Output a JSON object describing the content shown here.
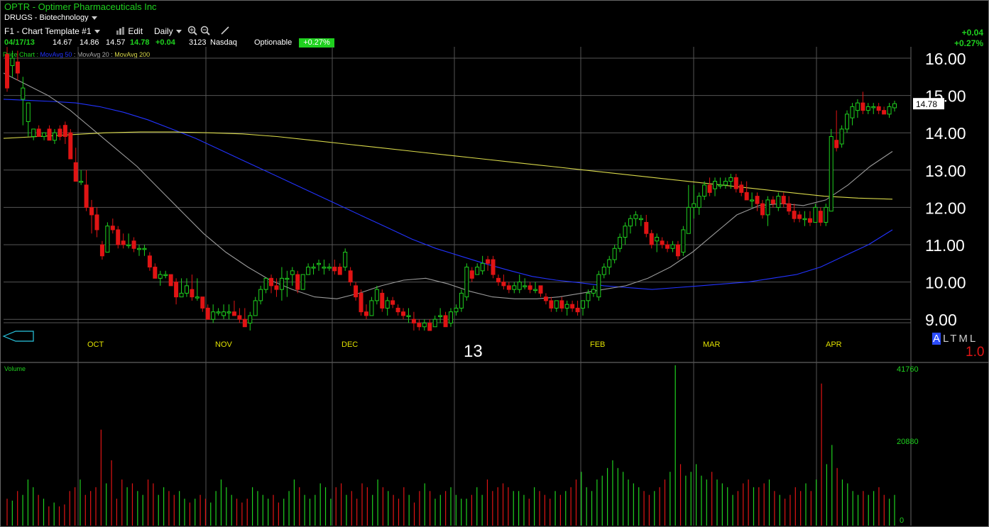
{
  "header": {
    "title": "OPTR - Optimer Pharmaceuticals Inc",
    "sector": "DRUGS - Biotechnology"
  },
  "toolbar": {
    "template": "F1 - Chart Template #1",
    "edit": "Edit",
    "period": "Daily"
  },
  "quote": {
    "date": "04/17/13",
    "open": "14.67",
    "high": "14.86",
    "low": "14.57",
    "last": "14.78",
    "change": "+0.04",
    "volume": "3123",
    "exchange": "Nasdaq",
    "optionable": "Optionable",
    "pct_badge": "+0.27%"
  },
  "change_display": {
    "net": "+0.04",
    "pct": "+0.27%"
  },
  "legend": {
    "price_chart": "Price Chart",
    "ma50": "MovAvg 50",
    "ma20": "MovAvg 20",
    "ma200": "MovAvg 200",
    "sep": " : ",
    "dot": " : "
  },
  "colors": {
    "up": "#1fd11f",
    "down": "#e01414",
    "ma50": "#2233ff",
    "ma20": "#9a9a9a",
    "ma200": "#d8d84a",
    "grid": "#555555",
    "axis_label": "#ffffff",
    "month_label": "#e0e000"
  },
  "modes": {
    "items": [
      "A",
      "L",
      "T",
      "M",
      "L"
    ],
    "selected": "A"
  },
  "scale_value": "1.0",
  "volume_label": "Volume",
  "chart_data": {
    "type": "candlestick",
    "price_axis": {
      "ticks": [
        "16.00",
        "15.00",
        "14.00",
        "13.00",
        "12.00",
        "11.00",
        "10.00",
        "9.00"
      ],
      "ylim": [
        8.6,
        16.5
      ]
    },
    "last_price_tag": "14.78",
    "x_labels": [
      "OCT",
      "NOV",
      "DEC",
      "13",
      "FEB",
      "MAR",
      "APR"
    ],
    "candles": [
      [
        16.1,
        16.3,
        15.1,
        15.2
      ],
      [
        15.8,
        16.2,
        15.5,
        16
      ],
      [
        15.9,
        16.2,
        15.4,
        15.6
      ],
      [
        14.9,
        15.5,
        14.2,
        15.2
      ],
      [
        14.3,
        14.8,
        13.9,
        14.8
      ],
      [
        13.9,
        14.1,
        13.8,
        14.1
      ],
      [
        14.1,
        14.2,
        13.9,
        13.9
      ],
      [
        13.9,
        14,
        13.8,
        14
      ],
      [
        14.1,
        14.2,
        13.8,
        13.8
      ],
      [
        13.8,
        14.1,
        13.7,
        14
      ],
      [
        14.1,
        14.2,
        13.8,
        13.9
      ],
      [
        14.2,
        14.3,
        13.7,
        13.9
      ],
      [
        14,
        14.1,
        13.3,
        13.3
      ],
      [
        13.2,
        13.6,
        12.7,
        12.7
      ],
      [
        12.7,
        13,
        12.6,
        12.7
      ],
      [
        12.6,
        13,
        11.9,
        12
      ],
      [
        12,
        12.2,
        11.3,
        11.8
      ],
      [
        11.8,
        12,
        11.2,
        11.4
      ],
      [
        11,
        11.1,
        10.6,
        10.7
      ],
      [
        10.8,
        11.6,
        10.8,
        11.5
      ],
      [
        11.5,
        11.7,
        11.3,
        11.4
      ],
      [
        11.4,
        11.5,
        10.9,
        11
      ],
      [
        11.1,
        11.3,
        10.9,
        11
      ],
      [
        11,
        11.3,
        10.9,
        11
      ],
      [
        11.1,
        11.2,
        10.8,
        10.9
      ],
      [
        10.9,
        11,
        10.7,
        10.9
      ],
      [
        10.9,
        11,
        10.7,
        10.9
      ],
      [
        10.7,
        10.8,
        10.3,
        10.4
      ],
      [
        10.4,
        10.5,
        10.1,
        10.1
      ],
      [
        10.1,
        10.3,
        9.9,
        10.2
      ],
      [
        10.2,
        10.3,
        10.1,
        10.2
      ],
      [
        10.2,
        10.2,
        9.9,
        9.9
      ],
      [
        10,
        10.1,
        9.4,
        9.6
      ],
      [
        9.6,
        10.1,
        9.6,
        9.7
      ],
      [
        9.7,
        10.1,
        9.6,
        9.9
      ],
      [
        9.8,
        10.2,
        9.5,
        9.6
      ],
      [
        9.6,
        10.1,
        9.5,
        9.6
      ],
      [
        9.6,
        9.6,
        9.2,
        9.3
      ],
      [
        9.3,
        9.4,
        9,
        9
      ],
      [
        9,
        9.4,
        8.9,
        9.2
      ],
      [
        9.2,
        9.3,
        9.1,
        9.2
      ],
      [
        9.1,
        9.4,
        9,
        9.2
      ],
      [
        9.2,
        9.4,
        9,
        9.2
      ],
      [
        9.2,
        9.5,
        9.1,
        9.1
      ],
      [
        9.1,
        9.3,
        8.9,
        9
      ],
      [
        9,
        9.3,
        8.8,
        8.8
      ],
      [
        8.9,
        9.2,
        8.7,
        9.1
      ],
      [
        9.1,
        9.6,
        9.1,
        9.5
      ],
      [
        9.5,
        9.9,
        9.4,
        9.8
      ],
      [
        9.8,
        10.1,
        9.7,
        10.1
      ],
      [
        10.1,
        10.2,
        9.7,
        9.9
      ],
      [
        9.9,
        10.1,
        9.6,
        9.8
      ],
      [
        9.8,
        10.4,
        9.5,
        10.1
      ],
      [
        10.1,
        10.3,
        9.6,
        10.1
      ],
      [
        10.2,
        10.4,
        9.9,
        10.3
      ],
      [
        10.2,
        10.3,
        9.7,
        9.8
      ],
      [
        9.8,
        10.2,
        9.8,
        10.2
      ],
      [
        10.2,
        10.5,
        10.2,
        10.4
      ],
      [
        10.4,
        10.5,
        10.2,
        10.4
      ],
      [
        10.5,
        10.6,
        10.3,
        10.5
      ],
      [
        10.4,
        10.6,
        10.2,
        10.4
      ],
      [
        10.4,
        10.5,
        10.3,
        10.4
      ],
      [
        10.4,
        10.6,
        10.2,
        10.3
      ],
      [
        10.4,
        10.5,
        10.2,
        10.2
      ],
      [
        10.4,
        10.9,
        10.3,
        10.8
      ],
      [
        10.3,
        10.4,
        9.9,
        10
      ],
      [
        9.9,
        10,
        9.5,
        9.6
      ],
      [
        9.7,
        9.8,
        9.1,
        9.2
      ],
      [
        9.2,
        9.4,
        9,
        9.1
      ],
      [
        9.1,
        9.6,
        9.1,
        9.5
      ],
      [
        9.5,
        9.9,
        9.4,
        9.8
      ],
      [
        9.7,
        9.8,
        9.2,
        9.3
      ],
      [
        9.3,
        9.6,
        9.1,
        9.5
      ],
      [
        9.5,
        9.6,
        9.3,
        9.4
      ],
      [
        9.3,
        9.4,
        9.1,
        9.2
      ],
      [
        9.2,
        9.3,
        9,
        9.1
      ],
      [
        9.1,
        9.3,
        8.9,
        9.1
      ],
      [
        9,
        9.2,
        8.7,
        8.9
      ],
      [
        8.9,
        9,
        8.7,
        8.8
      ],
      [
        8.8,
        9,
        8.7,
        8.9
      ],
      [
        8.9,
        9,
        8.7,
        8.7
      ],
      [
        8.8,
        9.1,
        8.8,
        9
      ],
      [
        9.1,
        9.3,
        8.9,
        9.1
      ],
      [
        9.1,
        9.2,
        8.8,
        8.8
      ],
      [
        8.9,
        9.3,
        8.8,
        9.2
      ],
      [
        9.2,
        9.4,
        9.1,
        9.3
      ],
      [
        9.3,
        9.8,
        9.2,
        9.7
      ],
      [
        9.6,
        10.5,
        9.5,
        10.4
      ],
      [
        10.3,
        10.4,
        10,
        10.1
      ],
      [
        10.2,
        10.5,
        10.2,
        10.4
      ],
      [
        10.3,
        10.7,
        10.2,
        10.5
      ],
      [
        10.6,
        10.7,
        10.3,
        10.5
      ],
      [
        10.6,
        10.7,
        10.1,
        10.2
      ],
      [
        10.1,
        10.2,
        9.9,
        10
      ],
      [
        10,
        10.2,
        9.8,
        9.9
      ],
      [
        9.9,
        10,
        9.7,
        9.8
      ],
      [
        9.8,
        10,
        9.7,
        9.9
      ],
      [
        9.8,
        10.2,
        9.7,
        10
      ],
      [
        9.9,
        10.1,
        9.8,
        9.9
      ],
      [
        9.9,
        10,
        9.7,
        9.8
      ],
      [
        9.8,
        10,
        9.7,
        9.8
      ],
      [
        9.9,
        9.9,
        9.6,
        9.7
      ],
      [
        9.6,
        9.7,
        9.4,
        9.5
      ],
      [
        9.5,
        9.6,
        9.2,
        9.3
      ],
      [
        9.3,
        9.5,
        9.2,
        9.5
      ],
      [
        9.5,
        9.6,
        9.2,
        9.3
      ],
      [
        9.3,
        9.5,
        9.1,
        9.4
      ],
      [
        9.4,
        9.5,
        9.2,
        9.3
      ],
      [
        9.3,
        9.5,
        9.1,
        9.2
      ],
      [
        9.3,
        9.5,
        9.1,
        9.5
      ],
      [
        9.5,
        9.8,
        9.3,
        9.7
      ],
      [
        9.7,
        9.9,
        9.6,
        9.8
      ],
      [
        9.6,
        10.3,
        9.5,
        10.2
      ],
      [
        10.2,
        10.5,
        10.1,
        10.4
      ],
      [
        10.4,
        10.7,
        10.2,
        10.6
      ],
      [
        10.6,
        11,
        10.5,
        10.9
      ],
      [
        10.9,
        11.3,
        10.8,
        11.2
      ],
      [
        11.2,
        11.6,
        11,
        11.5
      ],
      [
        11.5,
        11.8,
        11.3,
        11.7
      ],
      [
        11.7,
        11.9,
        11.5,
        11.8
      ],
      [
        11.7,
        11.8,
        11.5,
        11.7
      ],
      [
        11.6,
        11.8,
        11.2,
        11.3
      ],
      [
        11.3,
        11.4,
        10.9,
        11
      ],
      [
        11.1,
        11.3,
        10.8,
        11.2
      ],
      [
        11.1,
        11.2,
        10.9,
        11
      ],
      [
        11,
        11.1,
        10.8,
        10.9
      ],
      [
        10.9,
        11.1,
        10.8,
        11
      ],
      [
        11,
        11.1,
        10.6,
        10.7
      ],
      [
        10.8,
        11.5,
        10.7,
        11.4
      ],
      [
        11.3,
        12.6,
        11.3,
        12
      ],
      [
        12,
        12.6,
        11.7,
        12.1
      ],
      [
        12,
        12.4,
        11.8,
        12.3
      ],
      [
        12.3,
        12.7,
        12.2,
        12.6
      ],
      [
        12.6,
        12.8,
        12.3,
        12.4
      ],
      [
        12.5,
        12.8,
        12.3,
        12.7
      ],
      [
        12.6,
        12.8,
        12.5,
        12.6
      ],
      [
        12.6,
        12.8,
        12.5,
        12.7
      ],
      [
        12.7,
        12.9,
        12.5,
        12.8
      ],
      [
        12.8,
        12.9,
        12.4,
        12.5
      ],
      [
        12.6,
        12.7,
        12.3,
        12.4
      ],
      [
        12.4,
        12.7,
        12.2,
        12.2
      ],
      [
        12.2,
        12.4,
        12,
        12.2
      ],
      [
        12.3,
        12.4,
        11.9,
        12.1
      ],
      [
        12.1,
        12.2,
        11.7,
        11.8
      ],
      [
        11.8,
        12.3,
        11.5,
        12.2
      ],
      [
        12.2,
        12.3,
        12,
        12.1
      ],
      [
        12,
        12.4,
        11.9,
        12.3
      ],
      [
        12.3,
        12.4,
        12,
        12.1
      ],
      [
        12.1,
        12.3,
        11.8,
        11.9
      ],
      [
        11.9,
        12.1,
        11.6,
        11.7
      ],
      [
        11.8,
        11.9,
        11.6,
        11.7
      ],
      [
        11.7,
        11.9,
        11.5,
        11.7
      ],
      [
        11.7,
        11.9,
        11.5,
        11.6
      ],
      [
        11.6,
        12.1,
        11.6,
        12
      ],
      [
        11.9,
        12,
        11.5,
        11.6
      ],
      [
        11.6,
        12.1,
        11.5,
        12
      ],
      [
        11.9,
        14.1,
        11.9,
        13.9
      ],
      [
        13.8,
        14.6,
        13.5,
        13.6
      ],
      [
        13.7,
        14.2,
        13.6,
        14.1
      ],
      [
        14.1,
        14.6,
        14,
        14.5
      ],
      [
        14.4,
        14.8,
        14.2,
        14.7
      ],
      [
        14.6,
        14.9,
        14.4,
        14.8
      ],
      [
        14.8,
        15.1,
        14.5,
        14.6
      ],
      [
        14.6,
        14.8,
        14.5,
        14.7
      ],
      [
        14.7,
        14.8,
        14.5,
        14.7
      ],
      [
        14.7,
        14.8,
        14.5,
        14.6
      ],
      [
        14.6,
        14.7,
        14.5,
        14.5
      ],
      [
        14.5,
        14.8,
        14.4,
        14.7
      ],
      [
        14.67,
        14.86,
        14.57,
        14.78
      ]
    ],
    "series": [
      {
        "key": "ma50",
        "values": [
          14.9,
          14.87,
          14.84,
          14.8,
          14.7,
          14.55,
          14.35,
          14.1,
          13.85,
          13.55,
          13.25,
          12.95,
          12.65,
          12.35,
          12.05,
          11.75,
          11.45,
          11.15,
          10.9,
          10.7,
          10.5,
          10.32,
          10.15,
          10.05,
          9.98,
          9.9,
          9.85,
          9.8,
          9.85,
          9.9,
          9.95,
          10,
          10.1,
          10.2,
          10.4,
          10.7,
          11,
          11.4
        ]
      },
      {
        "key": "ma20",
        "values": [
          15.6,
          15.3,
          15,
          14.6,
          14.1,
          13.6,
          13.1,
          12.5,
          11.9,
          11.3,
          10.8,
          10.4,
          10.05,
          9.8,
          9.6,
          9.55,
          9.7,
          9.9,
          10.05,
          10.1,
          9.95,
          9.75,
          9.6,
          9.55,
          9.55,
          9.6,
          9.7,
          9.8,
          9.9,
          10.1,
          10.4,
          10.8,
          11.3,
          11.8,
          12.05,
          12.1,
          12.05,
          12.2,
          12.6,
          13.1,
          13.5
        ]
      },
      {
        "key": "ma200",
        "values": [
          13.85,
          13.9,
          13.95,
          14,
          14.02,
          14.02,
          14,
          13.97,
          13.9,
          13.8,
          13.7,
          13.6,
          13.5,
          13.4,
          13.3,
          13.2,
          13.1,
          13,
          12.9,
          12.8,
          12.7,
          12.6,
          12.5,
          12.4,
          12.3,
          12.25,
          12.22
        ]
      }
    ],
    "volume_axis": {
      "ticks": [
        "41760",
        "20880",
        "0"
      ],
      "ylim": [
        0,
        41760
      ]
    },
    "volume": [
      7000,
      6500,
      9000,
      8000,
      12000,
      10000,
      8000,
      7000,
      5000,
      6000,
      5000,
      5500,
      9000,
      10000,
      12000,
      8000,
      9000,
      10000,
      25000,
      11000,
      17000,
      7000,
      12000,
      10000,
      11000,
      9000,
      8000,
      12000,
      11000,
      8000,
      10000,
      9000,
      8000,
      9000,
      7000,
      6000,
      7000,
      8000,
      7000,
      6000,
      9000,
      12000,
      10000,
      8000,
      7000,
      6000,
      7000,
      10000,
      9000,
      8000,
      7000,
      8000,
      6000,
      7000,
      9000,
      12000,
      10000,
      8000,
      7000,
      8000,
      11000,
      10000,
      7000,
      10000,
      11000,
      8000,
      9000,
      7000,
      11000,
      10000,
      8000,
      12000,
      10000,
      9000,
      8000,
      7000,
      10000,
      8000,
      6000,
      9000,
      11000,
      9000,
      7000,
      8000,
      9000,
      10000,
      8000,
      7000,
      7000,
      8000,
      10000,
      8000,
      12000,
      9000,
      10000,
      11000,
      10000,
      9000,
      9000,
      8000,
      7000,
      10000,
      9000,
      8000,
      7000,
      9000,
      8000,
      9000,
      10000,
      12000,
      14000,
      10000,
      9000,
      12000,
      13000,
      15000,
      17000,
      15000,
      14000,
      12000,
      11000,
      10000,
      9000,
      8000,
      9000,
      10000,
      12000,
      14000,
      41760,
      16000,
      13000,
      14000,
      16000,
      13000,
      12000,
      14000,
      12000,
      11000,
      10000,
      8000,
      9000,
      11000,
      12000,
      10000,
      10000,
      11000,
      12000,
      9000,
      8000,
      7000,
      8000,
      10000,
      9000,
      11000,
      9000,
      12000,
      37000,
      16000,
      21000,
      15000,
      12000,
      11000,
      9000,
      8000,
      9000,
      8000,
      9000,
      10000,
      8000,
      7000,
      8000
    ]
  }
}
